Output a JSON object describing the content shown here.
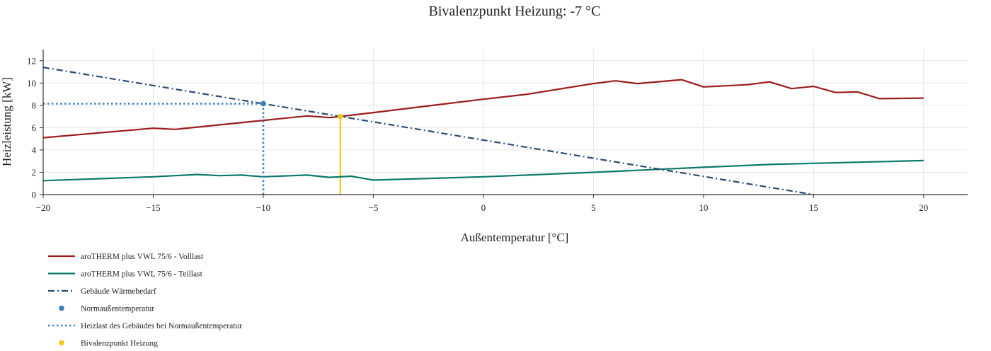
{
  "chart_data": {
    "type": "line",
    "title": "Bivalenzpunkt Heizung: -7 °C",
    "xlabel": "Außentemperatur [°C]",
    "ylabel": "Heizleistung [kW]",
    "xlim": [
      -20,
      22
    ],
    "ylim": [
      0,
      13
    ],
    "xticks": [
      -20,
      -15,
      -10,
      -5,
      0,
      5,
      10,
      15,
      20
    ],
    "xtick_labels": [
      "−20",
      "−15",
      "−10",
      "−5",
      "0",
      "5",
      "10",
      "15",
      "20"
    ],
    "yticks": [
      0,
      2,
      4,
      6,
      8,
      10,
      12
    ],
    "ytick_labels": [
      "0",
      "2",
      "4",
      "6",
      "8",
      "10",
      "12"
    ],
    "grid": true,
    "legend_position": "bottom-left, below plot",
    "series": [
      {
        "name": "aroTHERM plus VWL 75/6 - Volllast",
        "style": "solid",
        "color": "#9b1c1c",
        "x": [
          -20,
          -15,
          -14,
          -10,
          -8,
          -7,
          -6.5,
          -5,
          0,
          2,
          5,
          6,
          7,
          9,
          10,
          12,
          13,
          14,
          15,
          16,
          17,
          18,
          20
        ],
        "y": [
          5.1,
          5.95,
          5.85,
          6.65,
          7.05,
          6.9,
          7.0,
          7.35,
          8.55,
          9.0,
          9.95,
          10.2,
          9.95,
          10.3,
          9.65,
          9.85,
          10.1,
          9.5,
          9.7,
          9.15,
          9.2,
          8.6,
          8.65
        ]
      },
      {
        "name": "aroTHERM plus VWL 75/6 - Teillast",
        "style": "solid",
        "color": "#0b7a6a",
        "x": [
          -20,
          -15,
          -14,
          -13,
          -12,
          -11,
          -10,
          -8,
          -7,
          -6,
          -5,
          0,
          2,
          5,
          10,
          13,
          15,
          20
        ],
        "y": [
          1.25,
          1.6,
          1.7,
          1.8,
          1.7,
          1.75,
          1.6,
          1.75,
          1.55,
          1.65,
          1.3,
          1.6,
          1.75,
          2.0,
          2.45,
          2.7,
          2.8,
          3.05
        ]
      },
      {
        "name": "Gebäude Wärmebedarf",
        "style": "dashdot",
        "color": "#2c4a72",
        "x": [
          -20,
          15
        ],
        "y": [
          11.4,
          0
        ]
      },
      {
        "name": "Normaußentemperatur",
        "style": "marker",
        "color": "#3b7fb8",
        "x": [
          -10
        ],
        "y": [
          8.15
        ]
      },
      {
        "name": "Heizlast des Gebäudes bei Normaußentemperatur",
        "style": "dotted",
        "color": "#3b7fb8",
        "segments": [
          {
            "x": [
              -20,
              -10
            ],
            "y": [
              8.15,
              8.15
            ]
          },
          {
            "x": [
              -10,
              -10
            ],
            "y": [
              8.15,
              0
            ]
          }
        ]
      },
      {
        "name": "Bivalenzpunkt Heizung",
        "style": "marker",
        "color": "#f5c518",
        "x": [
          -6.5
        ],
        "y": [
          7.0
        ]
      }
    ],
    "annotations": [
      {
        "type": "vline",
        "color": "#f5c518",
        "x": -6.5,
        "y": [
          0,
          7.0
        ]
      }
    ]
  }
}
